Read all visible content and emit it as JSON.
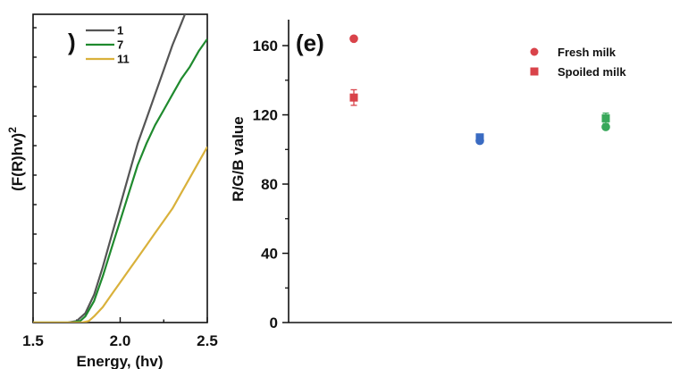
{
  "chart_data": [
    {
      "type": "line",
      "panel_label": ")",
      "xlabel": "Energy, (hv)",
      "ylabel_main": "(F(R)hv)",
      "ylabel_sup": "2",
      "xlim": [
        1.5,
        2.5
      ],
      "ylim": [
        0,
        100
      ],
      "xticks": [
        "1.5",
        "2.0",
        "2.5"
      ],
      "legend_position": "top-left",
      "series": [
        {
          "name": "1",
          "color": "#555555",
          "points": [
            [
              1.5,
              0
            ],
            [
              1.7,
              0
            ],
            [
              1.75,
              0.5
            ],
            [
              1.8,
              3
            ],
            [
              1.85,
              9
            ],
            [
              1.9,
              18
            ],
            [
              1.95,
              28
            ],
            [
              2.0,
              38
            ],
            [
              2.05,
              48
            ],
            [
              2.1,
              58
            ],
            [
              2.15,
              66
            ],
            [
              2.2,
              74
            ],
            [
              2.25,
              82
            ],
            [
              2.3,
              90
            ],
            [
              2.35,
              97
            ],
            [
              2.4,
              104
            ]
          ]
        },
        {
          "name": "7",
          "color": "#1f8a2e",
          "points": [
            [
              1.5,
              0
            ],
            [
              1.72,
              0
            ],
            [
              1.77,
              0.5
            ],
            [
              1.8,
              2
            ],
            [
              1.85,
              7
            ],
            [
              1.9,
              15
            ],
            [
              1.95,
              24
            ],
            [
              2.0,
              33
            ],
            [
              2.05,
              42
            ],
            [
              2.1,
              51
            ],
            [
              2.15,
              58
            ],
            [
              2.2,
              64
            ],
            [
              2.25,
              69
            ],
            [
              2.3,
              74
            ],
            [
              2.35,
              79
            ],
            [
              2.4,
              83
            ],
            [
              2.45,
              88
            ],
            [
              2.5,
              92
            ]
          ]
        },
        {
          "name": "11",
          "color": "#d9b13b",
          "points": [
            [
              1.5,
              0
            ],
            [
              1.78,
              0
            ],
            [
              1.82,
              0.5
            ],
            [
              1.85,
              2
            ],
            [
              1.9,
              5
            ],
            [
              1.95,
              9
            ],
            [
              2.0,
              13
            ],
            [
              2.05,
              17
            ],
            [
              2.1,
              21
            ],
            [
              2.15,
              25
            ],
            [
              2.2,
              29
            ],
            [
              2.25,
              33
            ],
            [
              2.3,
              37
            ],
            [
              2.35,
              42
            ],
            [
              2.4,
              47
            ],
            [
              2.45,
              52
            ],
            [
              2.5,
              57
            ]
          ]
        }
      ]
    },
    {
      "type": "scatter",
      "panel_label": "(e)",
      "ylabel": "R/G/B value",
      "ylim": [
        0,
        175
      ],
      "yticks": [
        "0",
        "40",
        "80",
        "120",
        "160"
      ],
      "grid": false,
      "legend_position": "top-right",
      "legend": [
        {
          "label": "Fresh milk",
          "marker": "circle",
          "color": "#d9434a"
        },
        {
          "label": "Spoiled milk",
          "marker": "square",
          "color": "#d9434a"
        }
      ],
      "groups": [
        {
          "channel": "R",
          "color": "#d9434a",
          "fresh": 164,
          "spoiled": 130,
          "spoiled_err": 4.5
        },
        {
          "channel": "B",
          "color": "#3a6bc2",
          "fresh": 105,
          "spoiled": 107,
          "spoiled_err": 1.5
        },
        {
          "channel": "G",
          "color": "#38a85a",
          "fresh": 113,
          "spoiled": 118,
          "spoiled_err": 3
        }
      ]
    }
  ]
}
